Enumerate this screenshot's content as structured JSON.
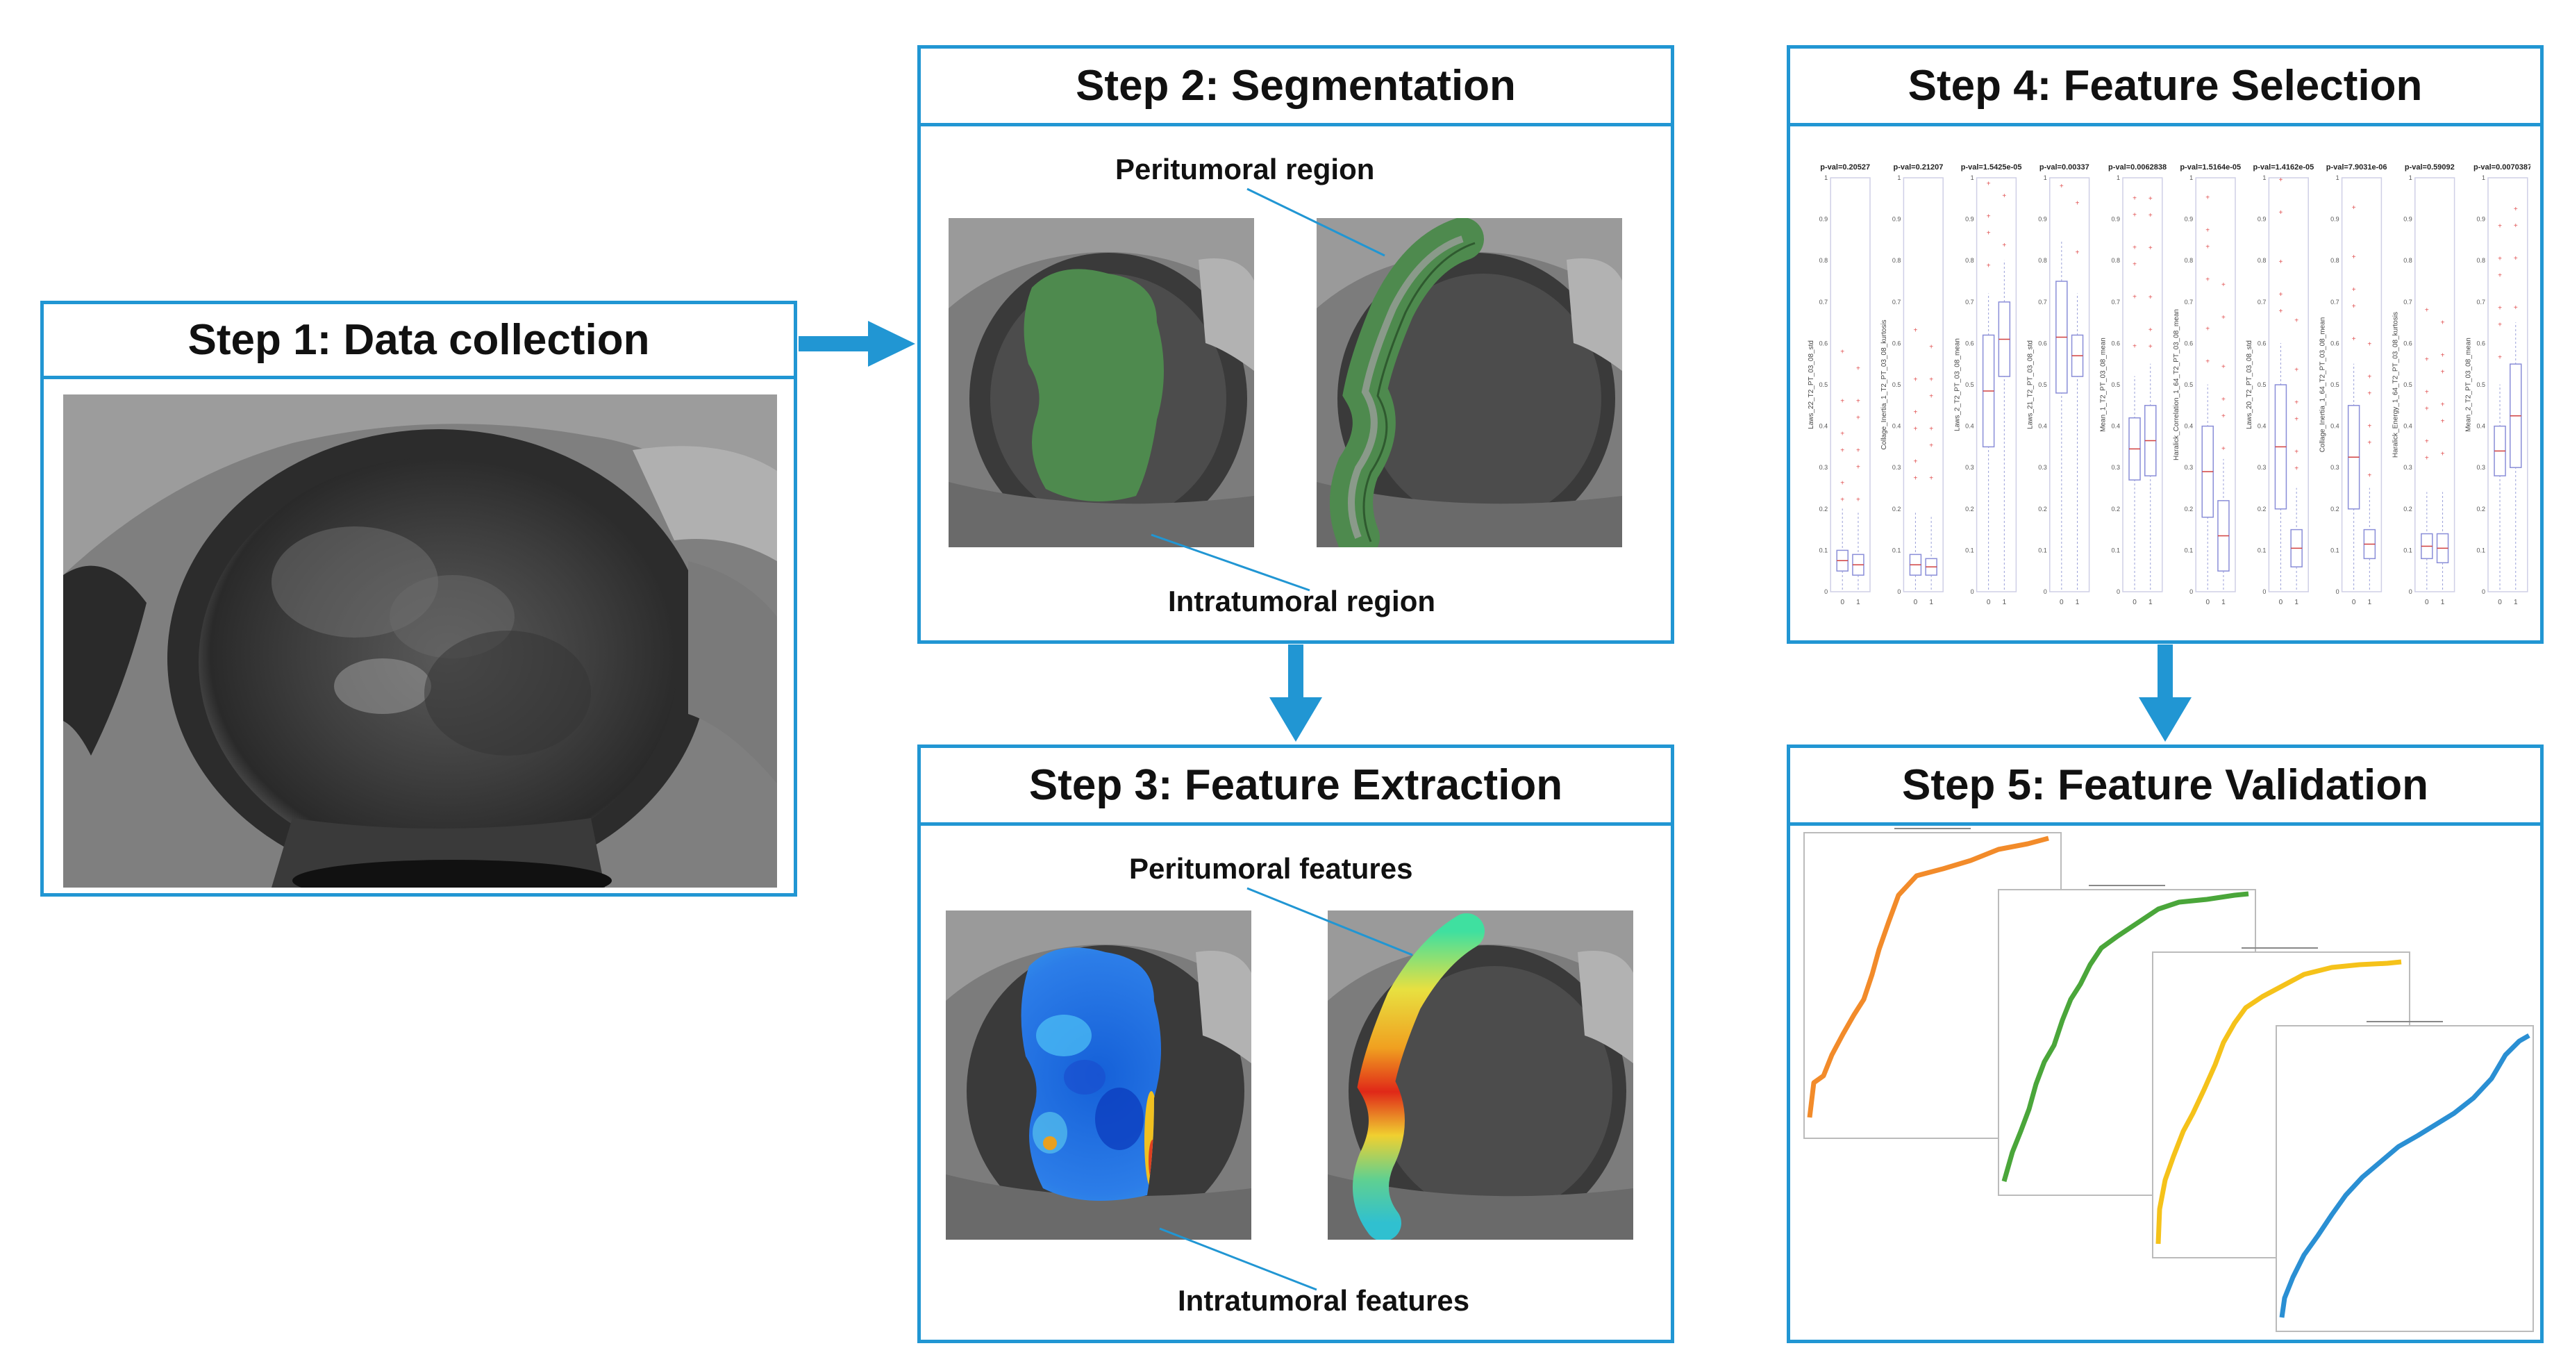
{
  "colors": {
    "accent": "#2196d3",
    "region_green": "#4e8a4e",
    "curve_orange": "#f28b2a",
    "curve_green": "#4aa63a",
    "curve_yellow": "#f5c21a",
    "curve_blue": "#2a8fd3"
  },
  "steps": {
    "step1": {
      "title": "Step 1: Data collection"
    },
    "step2": {
      "title": "Step 2: Segmentation",
      "peritumoral_label": "Peritumoral region",
      "intratumoral_label": "Intratumoral region"
    },
    "step3": {
      "title": "Step 3: Feature Extraction",
      "peritumoral_label": "Peritumoral features",
      "intratumoral_label": "Intratumoral features"
    },
    "step4": {
      "title": "Step 4: Feature Selection",
      "boxplots": [
        {
          "pval": "p-val=0.20527",
          "feature": "Laws_22_T2_PT_03_08_std"
        },
        {
          "pval": "p-val=0.21207",
          "feature": "Collage_Inertia_1_T2_PT_03_08_kurtosis"
        },
        {
          "pval": "p-val=1.5425e-05",
          "feature": "Laws_2_T2_PT_03_08_mean"
        },
        {
          "pval": "p-val=0.00337",
          "feature": "Laws_21_T2_PT_03_08_std"
        },
        {
          "pval": "p-val=0.0062838",
          "feature": "Mean_1_T2_PT_03_08_mean"
        },
        {
          "pval": "p-val=1.5164e-05",
          "feature": "Haralick_Correlation_1_64_T2_PT_03_08_mean"
        },
        {
          "pval": "p-val=1.4162e-05",
          "feature": "Laws_20_T2_PT_03_08_std"
        },
        {
          "pval": "p-val=7.9031e-06",
          "feature": "Collage_Inertia_1_64_T2_PT_03_08_mean"
        },
        {
          "pval": "p-val=0.59092",
          "feature": "Haralick_Energy_1_64_T2_PT_03_08_kurtosis"
        },
        {
          "pval": "p-val=0.0070387",
          "feature": "Mean_2_T2_PT_03_08_mean"
        }
      ],
      "x_ticks": [
        "0",
        "1"
      ],
      "y_ticks": [
        "0",
        "0.1",
        "0.2",
        "0.3",
        "0.4",
        "0.5",
        "0.6",
        "0.7",
        "0.8",
        "0.9",
        "1"
      ]
    },
    "step5": {
      "title": "Step 5: Feature Validation"
    }
  }
}
